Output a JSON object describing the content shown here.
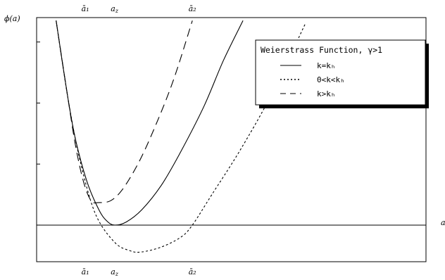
{
  "chart_data": {
    "type": "line",
    "title": "",
    "xlabel": "a",
    "ylabel": "ϕ(a)",
    "xlim": [
      0,
      10
    ],
    "ylim": [
      -0.6,
      3.4
    ],
    "grid": false,
    "legend": {
      "title": "Weierstrass Function, γ>1",
      "placement": "top-right",
      "entries": [
        "k=kₕ",
        "0<k<kₕ",
        "k>kₕ"
      ]
    },
    "top_ticks": [
      {
        "label": "ā₁",
        "x": 1.25
      },
      {
        "label": "a_z",
        "x": 2.0
      },
      {
        "label": "ā₂",
        "x": 4.0
      }
    ],
    "bottom_ticks": [
      {
        "label": "ā₁",
        "x": 1.25
      },
      {
        "label": "a_z",
        "x": 2.0
      },
      {
        "label": "ā₂",
        "x": 4.0
      }
    ],
    "baseline": 0,
    "series": [
      {
        "name": "k=kₕ",
        "style": "solid",
        "points": [
          [
            0.5,
            3.35
          ],
          [
            0.8,
            2.1
          ],
          [
            1.0,
            1.4
          ],
          [
            1.3,
            0.7
          ],
          [
            1.6,
            0.25
          ],
          [
            1.8,
            0.07
          ],
          [
            2.0,
            0.0
          ],
          [
            2.3,
            0.05
          ],
          [
            2.7,
            0.25
          ],
          [
            3.2,
            0.65
          ],
          [
            3.7,
            1.2
          ],
          [
            4.3,
            1.95
          ],
          [
            4.8,
            2.7
          ],
          [
            5.3,
            3.35
          ]
        ]
      },
      {
        "name": "0<k<kₕ",
        "style": "dotted",
        "points": [
          [
            0.5,
            3.35
          ],
          [
            0.8,
            2.1
          ],
          [
            1.1,
            1.1
          ],
          [
            1.5,
            0.2
          ],
          [
            2.0,
            -0.28
          ],
          [
            2.4,
            -0.42
          ],
          [
            2.7,
            -0.44
          ],
          [
            3.2,
            -0.36
          ],
          [
            3.7,
            -0.2
          ],
          [
            4.0,
            0.0
          ],
          [
            4.5,
            0.5
          ],
          [
            5.2,
            1.2
          ],
          [
            6.0,
            2.1
          ],
          [
            6.9,
            3.3
          ]
        ]
      },
      {
        "name": "k>kₕ",
        "style": "dashed",
        "points": [
          [
            0.5,
            3.35
          ],
          [
            0.8,
            2.1
          ],
          [
            1.0,
            1.3
          ],
          [
            1.2,
            0.72
          ],
          [
            1.4,
            0.4
          ],
          [
            1.6,
            0.37
          ],
          [
            1.9,
            0.4
          ],
          [
            2.2,
            0.58
          ],
          [
            2.6,
            1.0
          ],
          [
            3.0,
            1.55
          ],
          [
            3.5,
            2.35
          ],
          [
            4.0,
            3.35
          ]
        ]
      }
    ]
  }
}
